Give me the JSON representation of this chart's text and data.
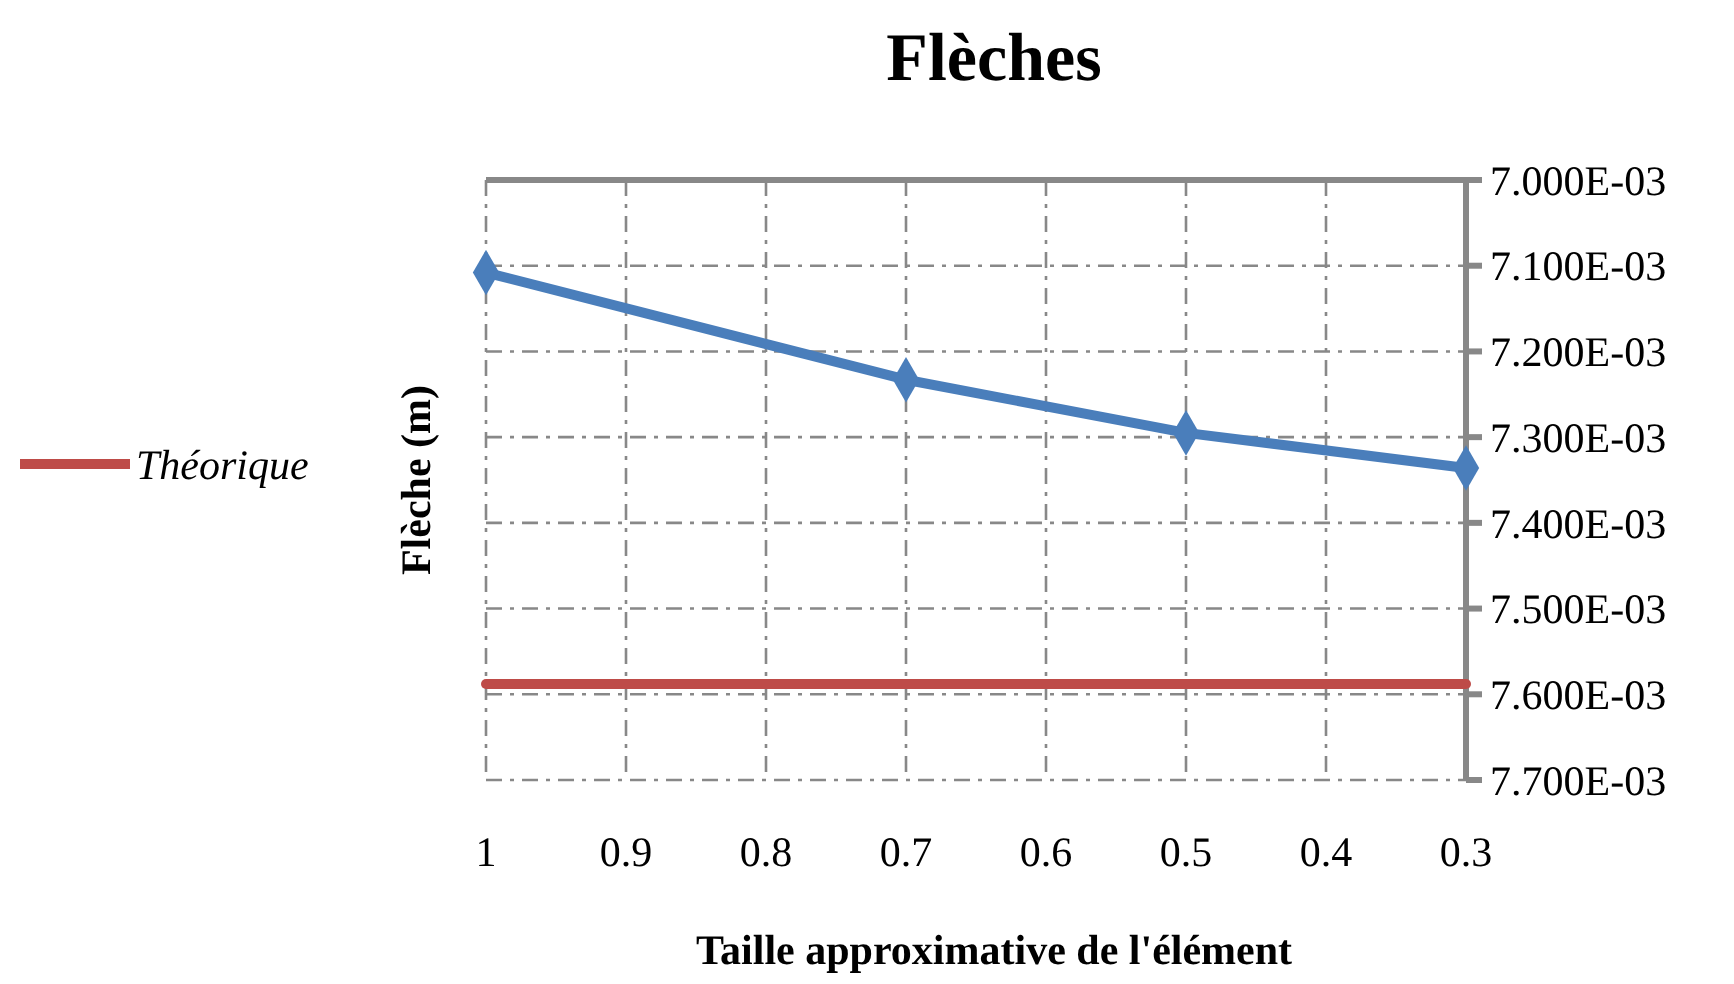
{
  "chart_data": {
    "type": "line",
    "title": "Flèches",
    "xlabel": "Taille approximative de l'élément",
    "ylabel": "Flèche (m)",
    "xlim": [
      1,
      0.3
    ],
    "xticks": [
      1,
      0.9,
      0.8,
      0.7,
      0.6,
      0.5,
      0.4,
      0.3
    ],
    "ylim": [
      0.0077,
      0.007
    ],
    "yticks": [
      {
        "value": 0.007,
        "label": "7.000E-03"
      },
      {
        "value": 0.0071,
        "label": "7.100E-03"
      },
      {
        "value": 0.0072,
        "label": "7.200E-03"
      },
      {
        "value": 0.0073,
        "label": "7.300E-03"
      },
      {
        "value": 0.0074,
        "label": "7.400E-03"
      },
      {
        "value": 0.0075,
        "label": "7.500E-03"
      },
      {
        "value": 0.0076,
        "label": "7.600E-03"
      },
      {
        "value": 0.0077,
        "label": "7.700E-03"
      }
    ],
    "grid": true,
    "legend": "left",
    "series": [
      {
        "color": "#4a7ebb",
        "marker": "diamond",
        "x": [
          1,
          0.7,
          0.5,
          0.3
        ],
        "values": [
          0.007108,
          0.007233,
          0.007295,
          0.007336
        ]
      },
      {
        "name": "Théorique",
        "color": "#be4b48",
        "marker": "none",
        "x": [
          1,
          0.3
        ],
        "values": [
          0.007588,
          0.007588
        ]
      }
    ]
  }
}
